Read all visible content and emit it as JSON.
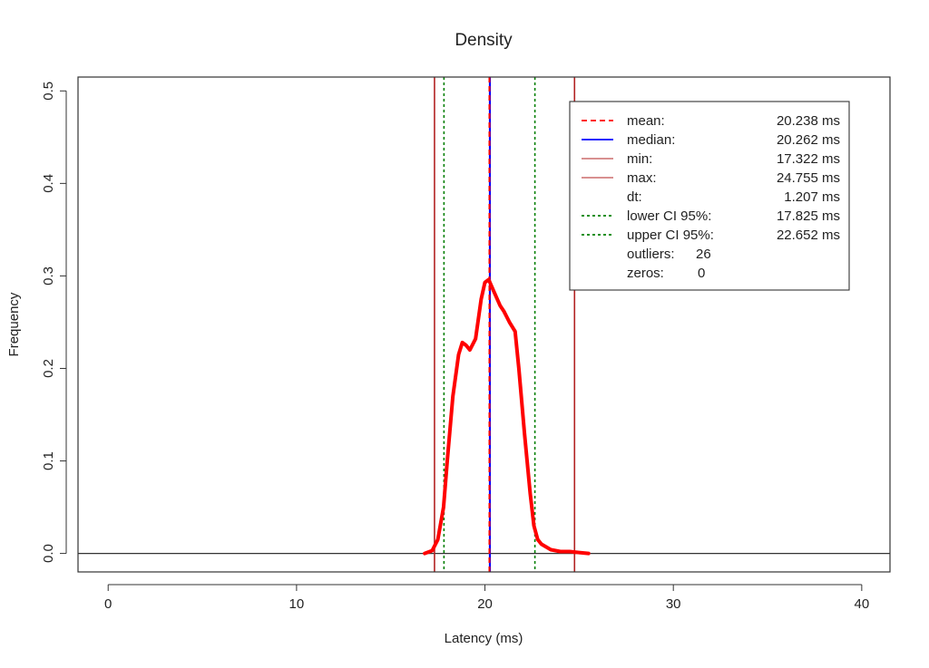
{
  "chart_data": {
    "type": "line",
    "title": "Density",
    "xlabel": "Latency (ms)",
    "ylabel": "Frequency",
    "xlim": [
      -1.6,
      41.5
    ],
    "ylim": [
      -0.02,
      0.515
    ],
    "x_ticks": [
      0,
      10,
      20,
      30,
      40
    ],
    "y_ticks": [
      0.0,
      0.1,
      0.2,
      0.3,
      0.4,
      0.5
    ],
    "x_tick_labels": [
      "0",
      "10",
      "20",
      "30",
      "40"
    ],
    "y_tick_labels": [
      "0.0",
      "0.1",
      "0.2",
      "0.3",
      "0.4",
      "0.5"
    ],
    "grid": false,
    "legend_position": "top-right",
    "baseline": 0.0,
    "series": [
      {
        "color": "#ff0000",
        "x": [
          16.8,
          17.2,
          17.5,
          17.8,
          18.0,
          18.3,
          18.6,
          18.8,
          19.0,
          19.2,
          19.5,
          19.8,
          20.0,
          20.2,
          20.5,
          20.8,
          21.0,
          21.3,
          21.6,
          21.8,
          22.1,
          22.4,
          22.6,
          22.8,
          23.0,
          23.5,
          24.0,
          24.5,
          25.0,
          25.5
        ],
        "y": [
          0.0,
          0.003,
          0.015,
          0.05,
          0.1,
          0.17,
          0.215,
          0.228,
          0.225,
          0.22,
          0.232,
          0.275,
          0.293,
          0.296,
          0.282,
          0.268,
          0.262,
          0.25,
          0.24,
          0.2,
          0.13,
          0.065,
          0.03,
          0.015,
          0.01,
          0.004,
          0.002,
          0.002,
          0.001,
          0.0
        ]
      }
    ],
    "vlines": [
      {
        "name": "min",
        "x": 17.322,
        "color": "#b22222",
        "style": "solid"
      },
      {
        "name": "lower",
        "x": 17.825,
        "color": "#008000",
        "style": "dotted"
      },
      {
        "name": "median",
        "x": 20.262,
        "color": "#0000ff",
        "style": "solid"
      },
      {
        "name": "mean",
        "x": 20.238,
        "color": "#ff0000",
        "style": "dashed"
      },
      {
        "name": "upper",
        "x": 22.652,
        "color": "#008000",
        "style": "dotted"
      },
      {
        "name": "max",
        "x": 24.755,
        "color": "#b22222",
        "style": "solid"
      }
    ],
    "legend": [
      {
        "label": "mean:",
        "value": "20.238 ms",
        "line": {
          "color": "#ff0000",
          "style": "dashed"
        }
      },
      {
        "label": "median:",
        "value": "20.262 ms",
        "line": {
          "color": "#0000ff",
          "style": "solid"
        }
      },
      {
        "label": "min:",
        "value": "17.322 ms",
        "line": {
          "color": "#b22222",
          "style": "thin"
        }
      },
      {
        "label": "max:",
        "value": "24.755 ms",
        "line": {
          "color": "#b22222",
          "style": "thin"
        }
      },
      {
        "label": "dt:",
        "value": "1.207 ms",
        "line": null
      },
      {
        "label": "lower CI 95%:",
        "value": "17.825 ms",
        "line": {
          "color": "#008000",
          "style": "dotted"
        }
      },
      {
        "label": "upper CI 95%:",
        "value": "22.652 ms",
        "line": {
          "color": "#008000",
          "style": "dotted"
        }
      },
      {
        "label": "outliers:",
        "value": "26",
        "line": null,
        "inline": true
      },
      {
        "label": "zeros:",
        "value": "0",
        "line": null,
        "inline": true
      }
    ]
  }
}
